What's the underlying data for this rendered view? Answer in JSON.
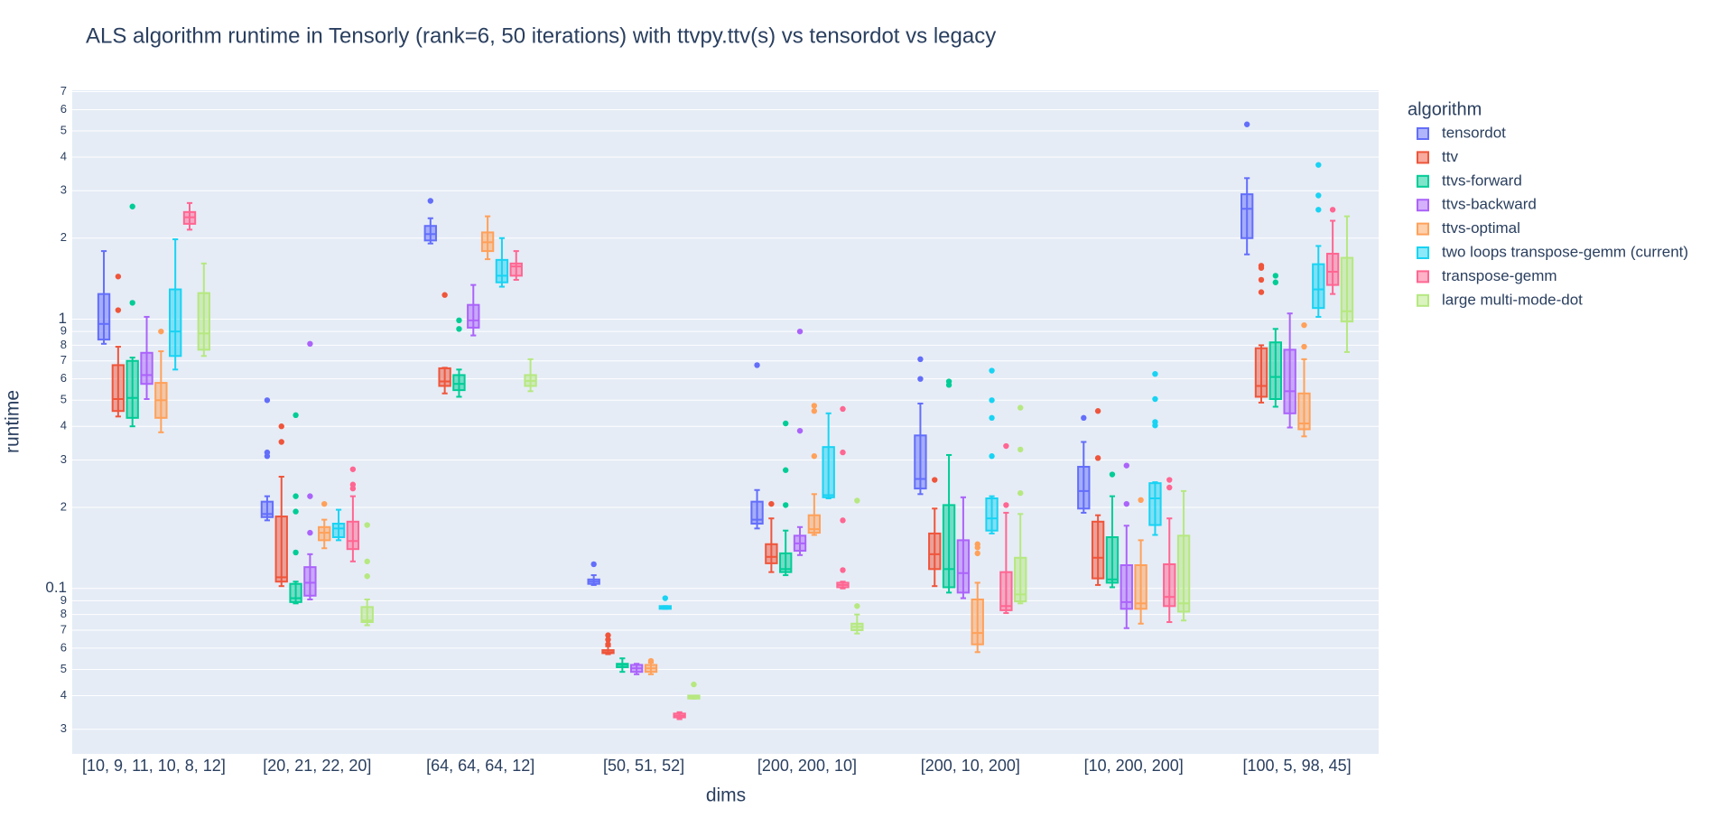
{
  "chart_data": {
    "type": "box",
    "title": "ALS algorithm runtime in Tensorly (rank=6, 50 iterations) with ttvpy.ttv(s) vs tensordot vs legacy",
    "x_label": "dims",
    "y_label": "runtime",
    "legend_title": "algorithm",
    "log_y": true,
    "grid": true,
    "legend_position": "right",
    "categories": [
      "[10, 9, 11, 10, 8, 12]",
      "[20, 21, 22, 20]",
      "[64, 64, 64, 12]",
      "[50, 51, 52]",
      "[200, 200, 10]",
      "[200, 10, 200]",
      "[10, 200, 200]",
      "[100, 5, 98, 45]"
    ],
    "ylim": [
      0.0243,
      7.08
    ],
    "yticks": [
      {
        "value": 0.03,
        "label": "3"
      },
      {
        "value": 0.04,
        "label": "4"
      },
      {
        "value": 0.05,
        "label": "5"
      },
      {
        "value": 0.06,
        "label": "6"
      },
      {
        "value": 0.07,
        "label": "7"
      },
      {
        "value": 0.08,
        "label": "8"
      },
      {
        "value": 0.09,
        "label": "9"
      },
      0.1,
      {
        "value": 0.2,
        "label": "2"
      },
      {
        "value": 0.3,
        "label": "3"
      },
      {
        "value": 0.4,
        "label": "4"
      },
      {
        "value": 0.5,
        "label": "5"
      },
      {
        "value": 0.6,
        "label": "6"
      },
      {
        "value": 0.7,
        "label": "7"
      },
      {
        "value": 0.8,
        "label": "8"
      },
      {
        "value": 0.9,
        "label": "9"
      },
      1,
      2,
      3,
      4,
      5,
      6,
      7
    ],
    "series": [
      {
        "name": "tensordot",
        "color": "#636efa",
        "values": [
          {
            "min": 0.81,
            "q1": 0.84,
            "median": 0.96,
            "q3": 1.24,
            "max": 1.79,
            "outliers": []
          },
          {
            "min": 0.179,
            "q1": 0.184,
            "median": 0.189,
            "q3": 0.21,
            "max": 0.22,
            "outliers": [
              0.5,
              0.32,
              0.31
            ]
          },
          {
            "min": 1.91,
            "q1": 1.96,
            "median": 2.07,
            "q3": 2.22,
            "max": 2.37,
            "outliers": [
              2.75
            ]
          },
          {
            "min": 0.103,
            "q1": 0.104,
            "median": 0.106,
            "q3": 0.108,
            "max": 0.112,
            "outliers": [
              0.123
            ]
          },
          {
            "min": 0.167,
            "q1": 0.174,
            "median": 0.18,
            "q3": 0.21,
            "max": 0.232,
            "outliers": [
              0.675
            ]
          },
          {
            "min": 0.224,
            "q1": 0.235,
            "median": 0.255,
            "q3": 0.37,
            "max": 0.486,
            "outliers": [
              0.71,
              0.6
            ]
          },
          {
            "min": 0.191,
            "q1": 0.198,
            "median": 0.23,
            "q3": 0.283,
            "max": 0.35,
            "outliers": [
              0.43
            ]
          },
          {
            "min": 1.74,
            "q1": 2.0,
            "median": 2.57,
            "q3": 2.91,
            "max": 3.34,
            "outliers": [
              5.29
            ]
          }
        ]
      },
      {
        "name": "ttv",
        "color": "#EF553B",
        "values": [
          {
            "min": 0.435,
            "q1": 0.456,
            "median": 0.505,
            "q3": 0.675,
            "max": 0.79,
            "outliers": [
              1.44,
              1.08
            ]
          },
          {
            "min": 0.102,
            "q1": 0.106,
            "median": 0.11,
            "q3": 0.185,
            "max": 0.26,
            "outliers": [
              0.4,
              0.35
            ]
          },
          {
            "min": 0.53,
            "q1": 0.565,
            "median": 0.587,
            "q3": 0.657,
            "max": 0.66,
            "outliers": [
              1.23
            ]
          },
          {
            "min": 0.057,
            "q1": 0.0575,
            "median": 0.058,
            "q3": 0.059,
            "max": 0.061,
            "outliers": [
              0.067,
              0.0645,
              0.062
            ]
          },
          {
            "min": 0.115,
            "q1": 0.124,
            "median": 0.131,
            "q3": 0.146,
            "max": 0.182,
            "outliers": [
              0.206
            ]
          },
          {
            "min": 0.102,
            "q1": 0.118,
            "median": 0.134,
            "q3": 0.16,
            "max": 0.198,
            "outliers": [
              0.253
            ]
          },
          {
            "min": 0.103,
            "q1": 0.109,
            "median": 0.13,
            "q3": 0.177,
            "max": 0.187,
            "outliers": [
              0.456,
              0.305
            ]
          },
          {
            "min": 0.49,
            "q1": 0.515,
            "median": 0.565,
            "q3": 0.78,
            "max": 0.8,
            "outliers": [
              1.58,
              1.55,
              1.4,
              1.26
            ]
          }
        ]
      },
      {
        "name": "ttvs-forward",
        "color": "#00cc96",
        "values": [
          {
            "min": 0.4,
            "q1": 0.43,
            "median": 0.51,
            "q3": 0.7,
            "max": 0.72,
            "outliers": [
              2.62,
              1.15
            ]
          },
          {
            "min": 0.088,
            "q1": 0.089,
            "median": 0.092,
            "q3": 0.104,
            "max": 0.106,
            "outliers": [
              0.44,
              0.22,
              0.193,
              0.136
            ]
          },
          {
            "min": 0.515,
            "q1": 0.545,
            "median": 0.575,
            "q3": 0.62,
            "max": 0.65,
            "outliers": [
              0.99,
              0.92
            ]
          },
          {
            "min": 0.049,
            "q1": 0.051,
            "median": 0.052,
            "q3": 0.0525,
            "max": 0.055,
            "outliers": []
          },
          {
            "min": 0.112,
            "q1": 0.115,
            "median": 0.118,
            "q3": 0.135,
            "max": 0.164,
            "outliers": [
              0.41,
              0.275,
              0.204
            ]
          },
          {
            "min": 0.0965,
            "q1": 0.101,
            "median": 0.118,
            "q3": 0.204,
            "max": 0.313,
            "outliers": [
              0.587,
              0.57
            ]
          },
          {
            "min": 0.101,
            "q1": 0.105,
            "median": 0.108,
            "q3": 0.155,
            "max": 0.22,
            "outliers": [
              0.265
            ]
          },
          {
            "min": 0.473,
            "q1": 0.505,
            "median": 0.61,
            "q3": 0.82,
            "max": 0.92,
            "outliers": [
              1.45,
              1.37
            ]
          }
        ]
      },
      {
        "name": "ttvs-backward",
        "color": "#ab63fa",
        "values": [
          {
            "min": 0.505,
            "q1": 0.575,
            "median": 0.62,
            "q3": 0.75,
            "max": 1.02,
            "outliers": []
          },
          {
            "min": 0.091,
            "q1": 0.094,
            "median": 0.105,
            "q3": 0.12,
            "max": 0.134,
            "outliers": [
              0.81,
              0.22,
              0.161
            ]
          },
          {
            "min": 0.87,
            "q1": 0.93,
            "median": 0.99,
            "q3": 1.13,
            "max": 1.34,
            "outliers": []
          },
          {
            "min": 0.048,
            "q1": 0.049,
            "median": 0.0505,
            "q3": 0.052,
            "max": 0.0525,
            "outliers": []
          },
          {
            "min": 0.133,
            "q1": 0.138,
            "median": 0.147,
            "q3": 0.157,
            "max": 0.169,
            "outliers": [
              0.9,
              0.385
            ]
          },
          {
            "min": 0.092,
            "q1": 0.0965,
            "median": 0.114,
            "q3": 0.151,
            "max": 0.218,
            "outliers": []
          },
          {
            "min": 0.0712,
            "q1": 0.084,
            "median": 0.089,
            "q3": 0.122,
            "max": 0.171,
            "outliers": [
              0.286,
              0.206
            ]
          },
          {
            "min": 0.396,
            "q1": 0.447,
            "median": 0.54,
            "q3": 0.77,
            "max": 1.05,
            "outliers": []
          }
        ]
      },
      {
        "name": "ttvs-optimal",
        "color": "#FFA15A",
        "values": [
          {
            "min": 0.38,
            "q1": 0.43,
            "median": 0.5,
            "q3": 0.58,
            "max": 0.76,
            "outliers": [
              0.9
            ]
          },
          {
            "min": 0.141,
            "q1": 0.151,
            "median": 0.161,
            "q3": 0.169,
            "max": 0.18,
            "outliers": [
              0.206
            ]
          },
          {
            "min": 1.67,
            "q1": 1.79,
            "median": 1.93,
            "q3": 2.1,
            "max": 2.41,
            "outliers": []
          },
          {
            "min": 0.048,
            "q1": 0.049,
            "median": 0.0505,
            "q3": 0.052,
            "max": 0.053,
            "outliers": [
              0.0538
            ]
          },
          {
            "min": 0.158,
            "q1": 0.161,
            "median": 0.166,
            "q3": 0.187,
            "max": 0.224,
            "outliers": [
              0.477,
              0.456,
              0.31
            ]
          },
          {
            "min": 0.058,
            "q1": 0.062,
            "median": 0.0683,
            "q3": 0.091,
            "max": 0.105,
            "outliers": [
              0.146,
              0.142,
              0.135
            ]
          },
          {
            "min": 0.074,
            "q1": 0.084,
            "median": 0.088,
            "q3": 0.122,
            "max": 0.151,
            "outliers": [
              0.213
            ]
          },
          {
            "min": 0.367,
            "q1": 0.39,
            "median": 0.41,
            "q3": 0.53,
            "max": 0.71,
            "outliers": [
              0.95,
              0.79
            ]
          }
        ]
      },
      {
        "name": "two loops transpose-gemm (current)",
        "color": "#19d3f3",
        "values": [
          {
            "min": 0.65,
            "q1": 0.73,
            "median": 0.9,
            "q3": 1.29,
            "max": 1.98,
            "outliers": []
          },
          {
            "min": 0.151,
            "q1": 0.155,
            "median": 0.167,
            "q3": 0.174,
            "max": 0.196,
            "outliers": []
          },
          {
            "min": 1.32,
            "q1": 1.37,
            "median": 1.45,
            "q3": 1.66,
            "max": 2.0,
            "outliers": []
          },
          {
            "min": 0.084,
            "q1": 0.084,
            "median": 0.085,
            "q3": 0.086,
            "max": 0.086,
            "outliers": [
              0.092
            ]
          },
          {
            "min": 0.216,
            "q1": 0.218,
            "median": 0.222,
            "q3": 0.335,
            "max": 0.447,
            "outliers": []
          },
          {
            "min": 0.16,
            "q1": 0.164,
            "median": 0.182,
            "q3": 0.216,
            "max": 0.22,
            "outliers": [
              0.644,
              0.5,
              0.43,
              0.31
            ]
          },
          {
            "min": 0.158,
            "q1": 0.172,
            "median": 0.216,
            "q3": 0.246,
            "max": 0.248,
            "outliers": [
              0.626,
              0.505,
              0.415,
              0.403
            ]
          },
          {
            "min": 1.02,
            "q1": 1.1,
            "median": 1.29,
            "q3": 1.6,
            "max": 1.87,
            "outliers": [
              3.74,
              2.88,
              2.55
            ]
          }
        ]
      },
      {
        "name": "transpose-gemm",
        "color": "#FF6692",
        "values": [
          {
            "min": 2.15,
            "q1": 2.26,
            "median": 2.39,
            "q3": 2.5,
            "max": 2.7,
            "outliers": []
          },
          {
            "min": 0.126,
            "q1": 0.14,
            "median": 0.15,
            "q3": 0.177,
            "max": 0.22,
            "outliers": [
              0.277,
              0.243,
              0.235
            ]
          },
          {
            "min": 1.4,
            "q1": 1.45,
            "median": 1.57,
            "q3": 1.61,
            "max": 1.79,
            "outliers": []
          },
          {
            "min": 0.0327,
            "q1": 0.0332,
            "median": 0.0337,
            "q3": 0.0343,
            "max": 0.0347,
            "outliers": []
          },
          {
            "min": 0.1,
            "q1": 0.101,
            "median": 0.103,
            "q3": 0.105,
            "max": 0.106,
            "outliers": [
              0.464,
              0.32,
              0.179,
              0.117
            ]
          },
          {
            "min": 0.081,
            "q1": 0.083,
            "median": 0.086,
            "q3": 0.115,
            "max": 0.191,
            "outliers": [
              0.338,
              0.204
            ]
          },
          {
            "min": 0.075,
            "q1": 0.086,
            "median": 0.093,
            "q3": 0.123,
            "max": 0.182,
            "outliers": [
              0.253,
              0.237
            ]
          },
          {
            "min": 1.24,
            "q1": 1.34,
            "median": 1.5,
            "q3": 1.75,
            "max": 2.32,
            "outliers": [
              2.55
            ]
          }
        ]
      },
      {
        "name": "large multi-mode-dot",
        "color": "#B6E880",
        "values": [
          {
            "min": 0.73,
            "q1": 0.77,
            "median": 0.885,
            "q3": 1.25,
            "max": 1.61,
            "outliers": []
          },
          {
            "min": 0.073,
            "q1": 0.075,
            "median": 0.076,
            "q3": 0.0853,
            "max": 0.091,
            "outliers": [
              0.172,
              0.126,
              0.111
            ]
          },
          {
            "min": 0.54,
            "q1": 0.565,
            "median": 0.59,
            "q3": 0.62,
            "max": 0.71,
            "outliers": []
          },
          {
            "min": 0.039,
            "q1": 0.039,
            "median": 0.0396,
            "q3": 0.04,
            "max": 0.04,
            "outliers": [
              0.044
            ]
          },
          {
            "min": 0.068,
            "q1": 0.07,
            "median": 0.072,
            "q3": 0.074,
            "max": 0.08,
            "outliers": [
              0.212,
              0.086
            ]
          },
          {
            "min": 0.088,
            "q1": 0.0895,
            "median": 0.095,
            "q3": 0.13,
            "max": 0.189,
            "outliers": [
              0.469,
              0.328,
              0.226
            ]
          },
          {
            "min": 0.076,
            "q1": 0.082,
            "median": 0.088,
            "q3": 0.157,
            "max": 0.23,
            "outliers": []
          },
          {
            "min": 0.755,
            "q1": 0.98,
            "median": 1.07,
            "q3": 1.69,
            "max": 2.41,
            "outliers": []
          }
        ]
      }
    ]
  }
}
